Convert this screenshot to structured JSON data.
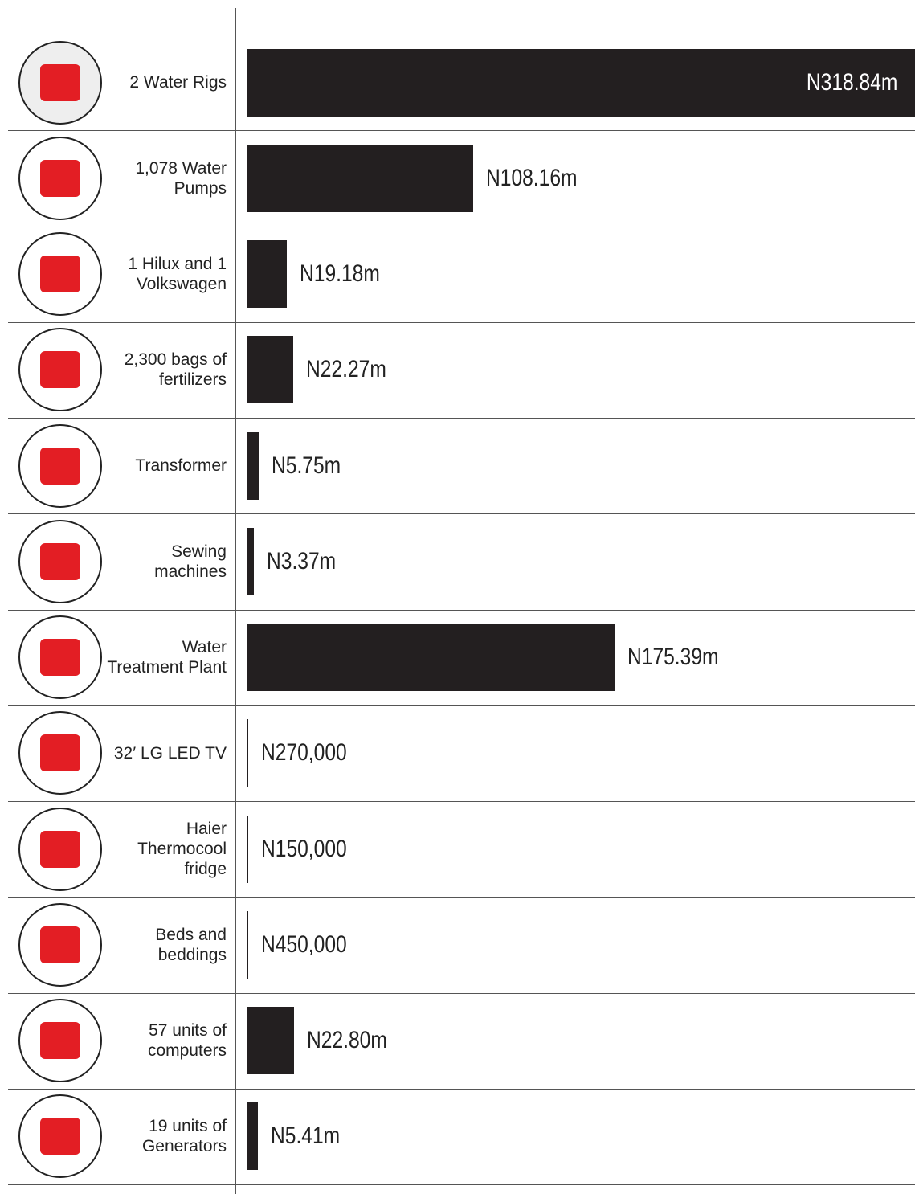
{
  "chart_data": {
    "type": "bar",
    "categories": [
      "2 Water Rigs",
      "1,078 Water Pumps",
      "1 Hilux and 1 Volkswagen",
      "2,300 bags of fertilizers",
      "Transformer",
      "Sewing machines",
      "Water Treatment Plant",
      "32′ LG LED TV",
      "Haier Thermocool fridge",
      "Beds and beddings",
      "57 units of computers",
      "19 units of Generators"
    ],
    "values": [
      318840000,
      108160000,
      19180000,
      22270000,
      5750000,
      3370000,
      175390000,
      270000,
      150000,
      450000,
      22800000,
      5410000
    ],
    "value_labels": [
      "N318.84m",
      "N108.16m",
      "N19.18m",
      "N22.27m",
      "N5.75m",
      "N3.37m",
      "N175.39m",
      "N270,000",
      "N150,000",
      "N450,000",
      "N22.80m",
      "N5.41m"
    ],
    "color": "#231f20"
  }
}
